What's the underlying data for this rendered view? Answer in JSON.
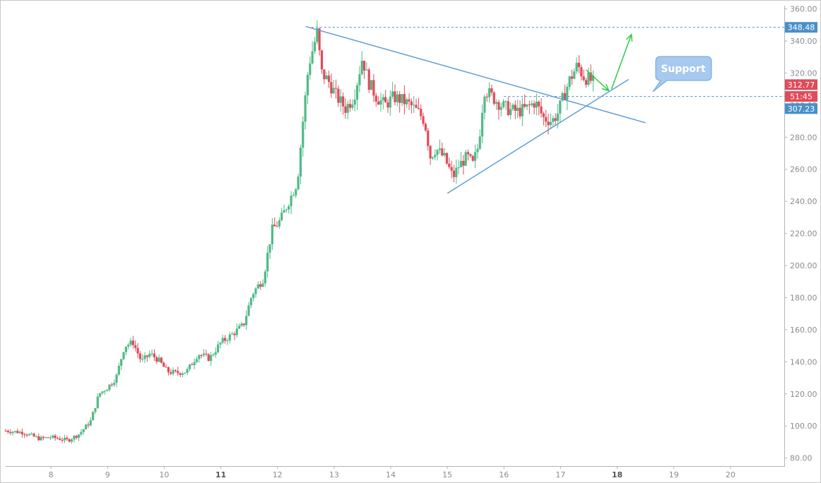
{
  "chart_data": {
    "type": "candlestick",
    "x_unit": "day",
    "x_ticks": [
      "8",
      "9",
      "10",
      "11",
      "12",
      "13",
      "14",
      "15",
      "16",
      "17",
      "18",
      "19",
      "20"
    ],
    "bold_x_ticks": [
      "11",
      "18"
    ],
    "y_ticks": [
      "80.00",
      "100.00",
      "120.00",
      "140.00",
      "160.00",
      "180.00",
      "200.00",
      "220.00",
      "240.00",
      "260.00",
      "280.00",
      "300.00",
      "320.00",
      "340.00",
      "360.00"
    ],
    "ylim": [
      75,
      362
    ],
    "xlim": [
      7.2,
      20.95
    ],
    "colors": {
      "up": "#4fba86",
      "down": "#e04b5a",
      "trendline": "#5b9bd5",
      "arrow": "#2ecc40",
      "axis": "#b2b5be"
    },
    "price_tags": [
      {
        "label": "348.48",
        "value": 348.48,
        "color": "#4a90c8"
      },
      {
        "label": "312.77",
        "value": 312.77,
        "color": "#e04b5a"
      },
      {
        "label": "51:45",
        "value": 305.4,
        "color": "#e04b5a"
      },
      {
        "label": "307.23",
        "value": 297.8,
        "color": "#4a90c8"
      }
    ],
    "horizontal_levels": [
      348.48,
      307.23
    ],
    "annotation": {
      "text": "Support"
    },
    "trendlines": [
      {
        "name": "descending-resistance",
        "from": [
          12.5,
          349
        ],
        "to": [
          18.5,
          289
        ]
      },
      {
        "name": "ascending-support",
        "from": [
          15.0,
          245
        ],
        "to": [
          18.2,
          316
        ]
      }
    ],
    "arrows": [
      {
        "from": [
          17.45,
          322
        ],
        "to": [
          17.85,
          309
        ]
      },
      {
        "from": [
          17.9,
          310
        ],
        "to": [
          18.25,
          344
        ]
      }
    ],
    "price_path": [
      [
        7.2,
        97
      ],
      [
        7.5,
        96
      ],
      [
        7.8,
        92
      ],
      [
        8.0,
        93
      ],
      [
        8.3,
        91
      ],
      [
        8.5,
        95
      ],
      [
        8.7,
        103
      ],
      [
        8.85,
        120
      ],
      [
        9.0,
        124
      ],
      [
        9.15,
        130
      ],
      [
        9.3,
        150
      ],
      [
        9.45,
        152
      ],
      [
        9.6,
        140
      ],
      [
        9.75,
        145
      ],
      [
        9.9,
        141
      ],
      [
        10.05,
        134
      ],
      [
        10.2,
        133
      ],
      [
        10.4,
        134
      ],
      [
        10.6,
        145
      ],
      [
        10.8,
        142
      ],
      [
        11.0,
        152
      ],
      [
        11.2,
        157
      ],
      [
        11.4,
        163
      ],
      [
        11.55,
        182
      ],
      [
        11.75,
        192
      ],
      [
        11.9,
        222
      ],
      [
        12.05,
        228
      ],
      [
        12.2,
        240
      ],
      [
        12.35,
        252
      ],
      [
        12.45,
        290
      ],
      [
        12.55,
        325
      ],
      [
        12.7,
        345
      ],
      [
        12.78,
        320
      ],
      [
        12.9,
        315
      ],
      [
        13.05,
        305
      ],
      [
        13.2,
        298
      ],
      [
        13.35,
        305
      ],
      [
        13.5,
        330
      ],
      [
        13.6,
        315
      ],
      [
        13.75,
        305
      ],
      [
        13.9,
        300
      ],
      [
        14.05,
        305
      ],
      [
        14.2,
        303
      ],
      [
        14.35,
        300
      ],
      [
        14.5,
        295
      ],
      [
        14.6,
        290
      ],
      [
        14.7,
        268
      ],
      [
        14.8,
        273
      ],
      [
        14.95,
        267
      ],
      [
        15.1,
        255
      ],
      [
        15.2,
        262
      ],
      [
        15.35,
        268
      ],
      [
        15.45,
        263
      ],
      [
        15.55,
        275
      ],
      [
        15.65,
        310
      ],
      [
        15.8,
        305
      ],
      [
        15.95,
        300
      ],
      [
        16.1,
        297
      ],
      [
        16.25,
        296
      ],
      [
        16.4,
        298
      ],
      [
        16.55,
        302
      ],
      [
        16.7,
        292
      ],
      [
        16.85,
        290
      ],
      [
        16.95,
        295
      ],
      [
        17.05,
        305
      ],
      [
        17.15,
        315
      ],
      [
        17.3,
        325
      ],
      [
        17.4,
        318
      ],
      [
        17.55,
        315
      ],
      [
        17.6,
        313
      ]
    ]
  }
}
